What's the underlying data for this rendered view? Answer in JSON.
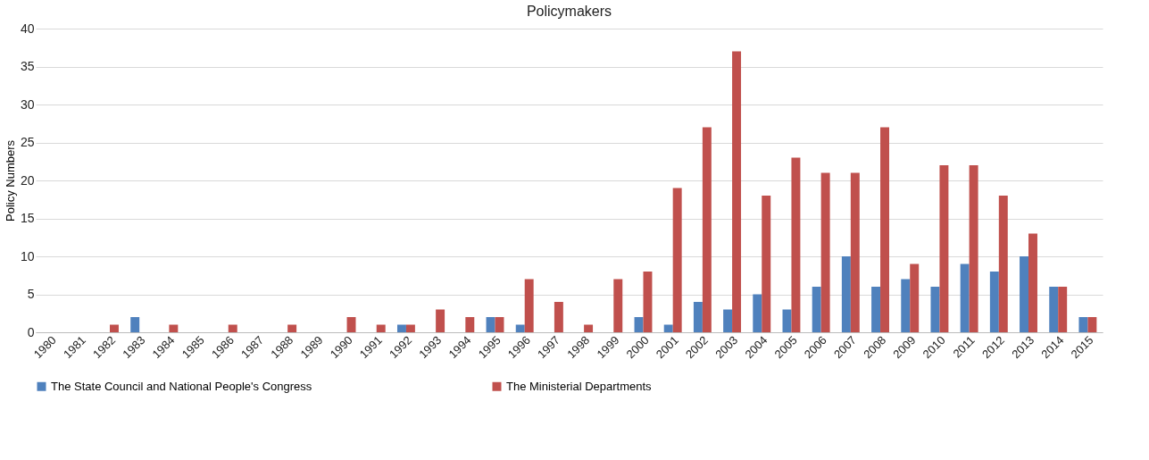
{
  "chart_data": {
    "type": "bar",
    "title": "Policymakers",
    "ylabel": "Policy Numbers",
    "categories": [
      "1980",
      "1981",
      "1982",
      "1983",
      "1984",
      "1985",
      "1986",
      "1987",
      "1988",
      "1989",
      "1990",
      "1991",
      "1992",
      "1993",
      "1994",
      "1995",
      "1996",
      "1997",
      "1998",
      "1999",
      "2000",
      "2001",
      "2002",
      "2003",
      "2004",
      "2005",
      "2006",
      "2007",
      "2008",
      "2009",
      "2010",
      "2011",
      "2012",
      "2013",
      "2014",
      "2015"
    ],
    "series": [
      {
        "name": "The State Council and National People's Congress",
        "color": "#4f81bd",
        "values": [
          0,
          0,
          0,
          2,
          0,
          0,
          0,
          0,
          0,
          0,
          0,
          0,
          1,
          0,
          0,
          2,
          1,
          0,
          0,
          0,
          2,
          1,
          4,
          3,
          5,
          3,
          6,
          10,
          6,
          7,
          6,
          9,
          8,
          10,
          6,
          2
        ]
      },
      {
        "name": "The Ministerial Departments",
        "color": "#c0504d",
        "values": [
          0,
          0,
          1,
          0,
          1,
          0,
          1,
          0,
          1,
          0,
          2,
          1,
          1,
          3,
          2,
          2,
          7,
          4,
          1,
          7,
          8,
          19,
          27,
          37,
          18,
          23,
          21,
          21,
          27,
          9,
          22,
          22,
          18,
          13,
          6,
          2
        ]
      }
    ],
    "ylim": [
      0,
      40
    ],
    "yticks": [
      0,
      5,
      10,
      15,
      20,
      25,
      30,
      35,
      40
    ],
    "grid": "y",
    "legend": "bottom"
  }
}
